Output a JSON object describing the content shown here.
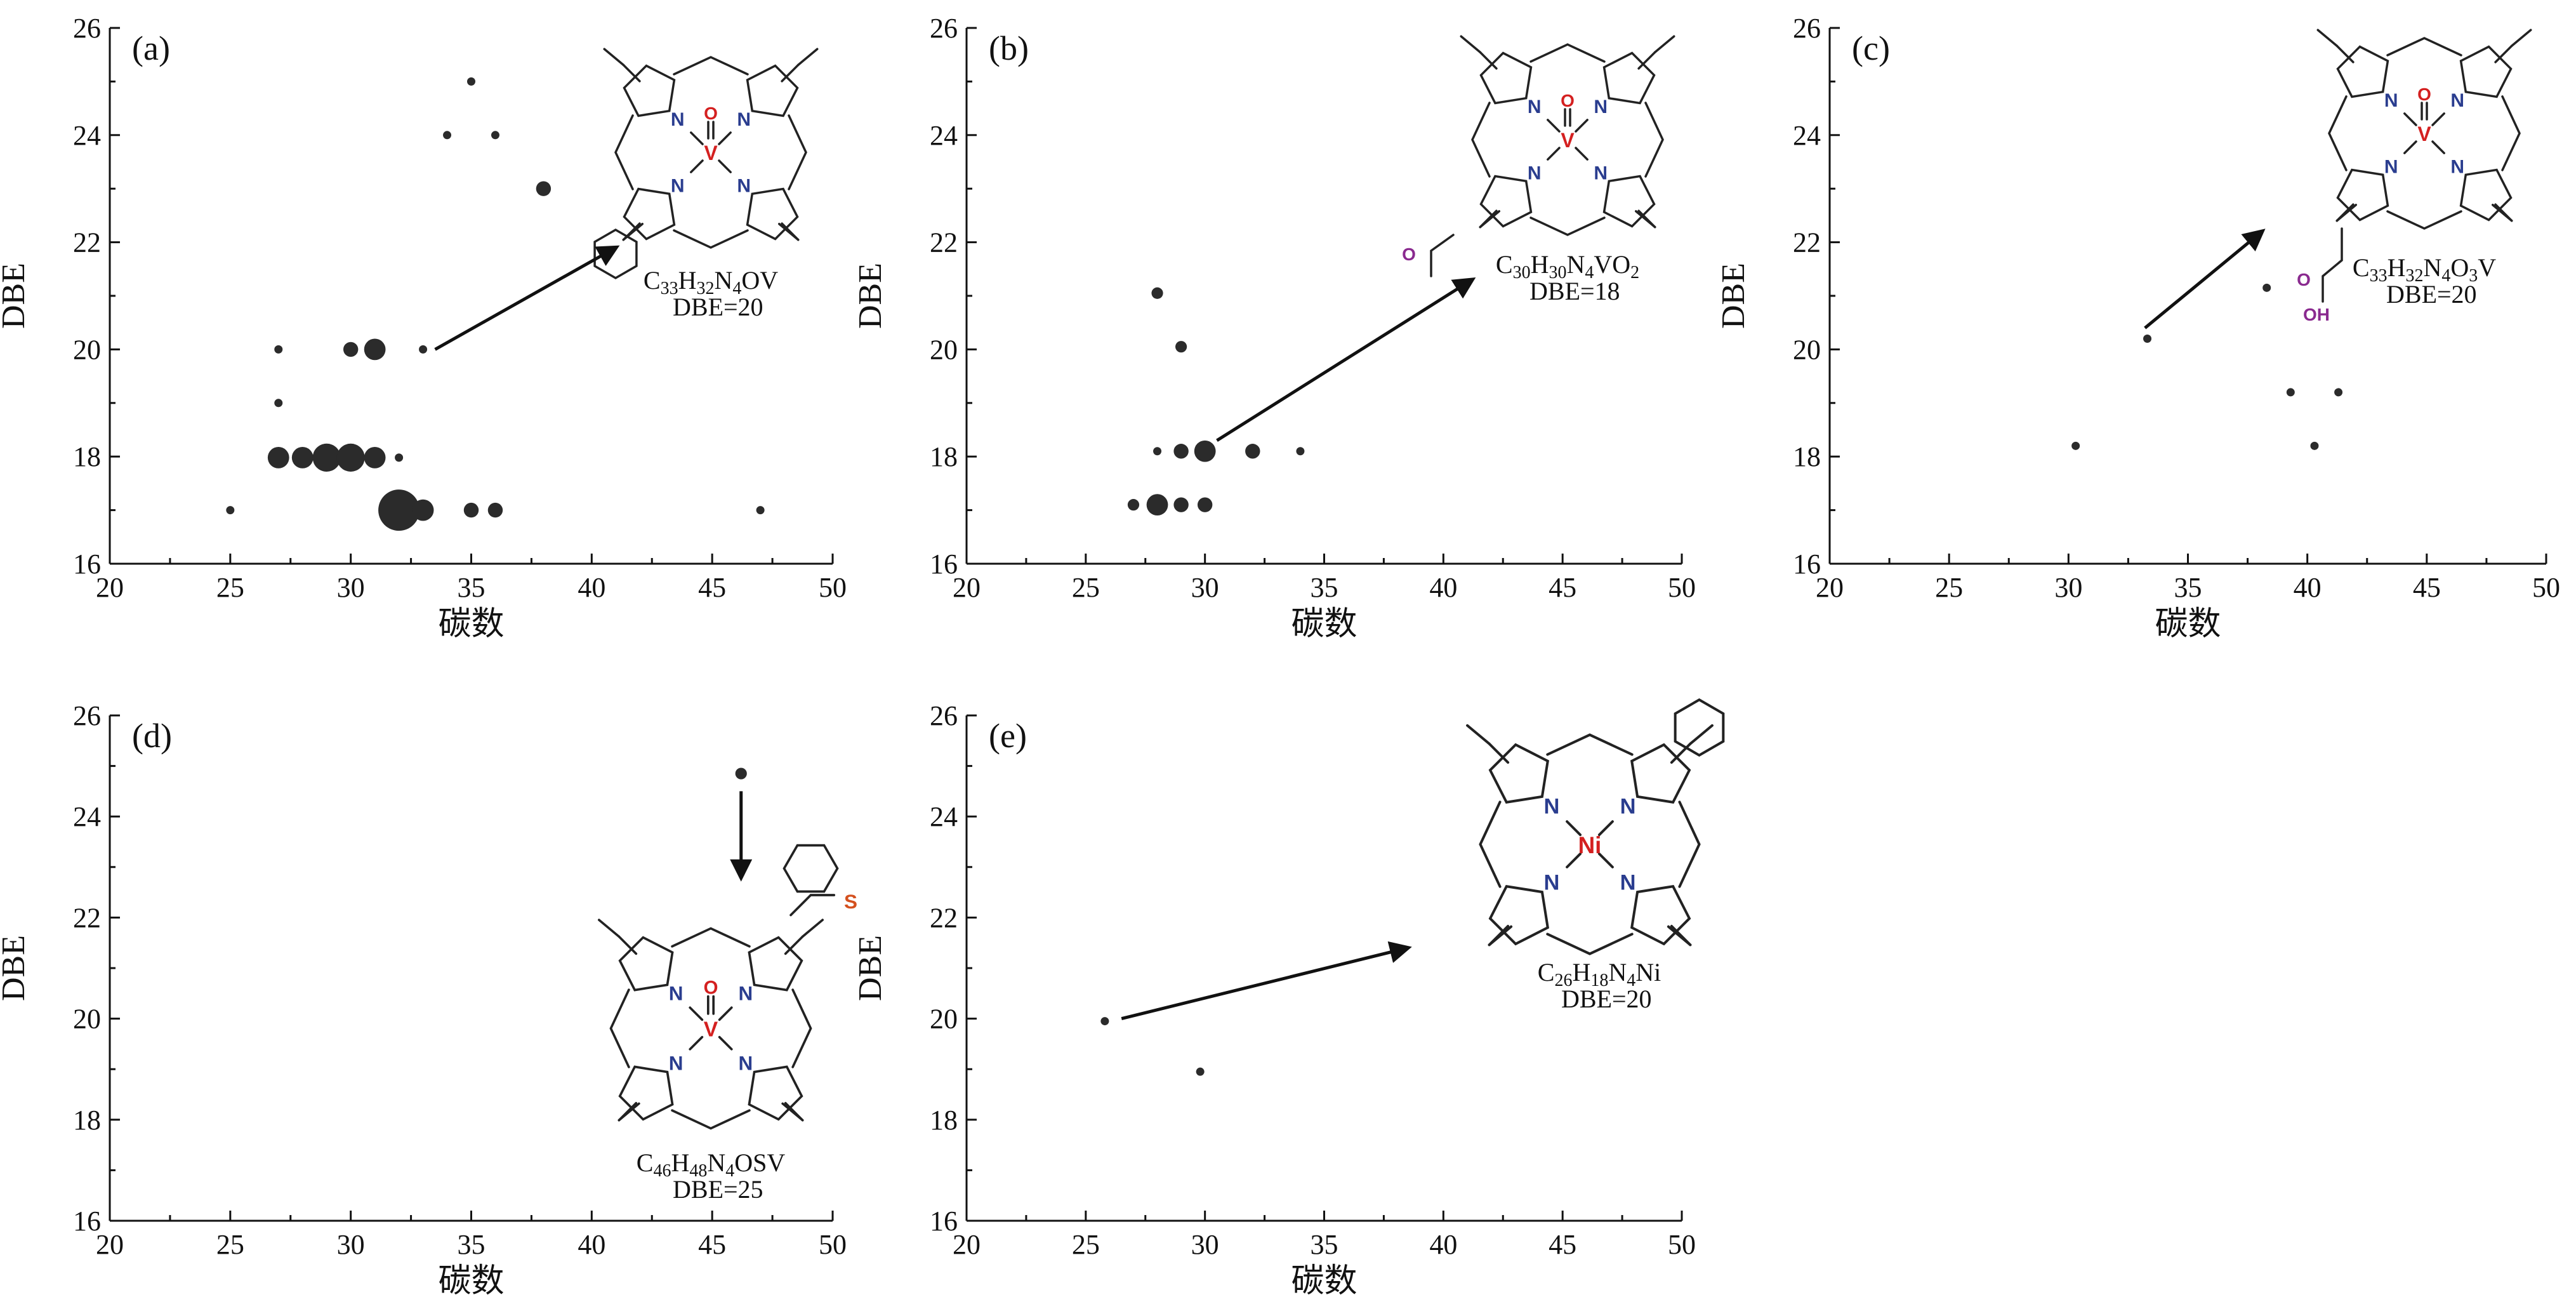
{
  "colors": {
    "axis": "#111111",
    "marker": "#2b2b2b",
    "nitrogen": "#2a3d8f",
    "metal": "#d42020",
    "oxygen_acid": "#8a2a8f",
    "sulfur": "#d4501e"
  },
  "atoms": {
    "n": "N",
    "v": "V",
    "ni": "Ni",
    "o": "O",
    "s": "S",
    "oh": "OH"
  },
  "chart_data": [
    {
      "type": "scatter",
      "panel": "(a)",
      "xlabel": "碳数",
      "ylabel": "DBE",
      "xlim": [
        20,
        50
      ],
      "ylim": [
        16,
        26
      ],
      "xticks": [
        20,
        25,
        30,
        35,
        40,
        45,
        50
      ],
      "yticks": [
        16,
        18,
        20,
        22,
        24,
        26
      ],
      "points": [
        {
          "x": 25,
          "y": 17,
          "size": 1
        },
        {
          "x": 27,
          "y": 17.98,
          "size": 3
        },
        {
          "x": 27,
          "y": 19,
          "size": 1
        },
        {
          "x": 27,
          "y": 20,
          "size": 1
        },
        {
          "x": 28,
          "y": 17.98,
          "size": 3
        },
        {
          "x": 29,
          "y": 17.98,
          "size": 4
        },
        {
          "x": 30,
          "y": 17.98,
          "size": 4
        },
        {
          "x": 30,
          "y": 20,
          "size": 2
        },
        {
          "x": 31,
          "y": 17.98,
          "size": 3
        },
        {
          "x": 31,
          "y": 20,
          "size": 3
        },
        {
          "x": 32,
          "y": 17.98,
          "size": 1
        },
        {
          "x": 32,
          "y": 17,
          "size": 6
        },
        {
          "x": 33,
          "y": 17,
          "size": 3
        },
        {
          "x": 33,
          "y": 20,
          "size": 1
        },
        {
          "x": 34,
          "y": 24,
          "size": 1
        },
        {
          "x": 35,
          "y": 25,
          "size": 1
        },
        {
          "x": 35,
          "y": 17,
          "size": 2
        },
        {
          "x": 36,
          "y": 24,
          "size": 1
        },
        {
          "x": 36,
          "y": 17,
          "size": 2
        },
        {
          "x": 38,
          "y": 23,
          "size": 2
        },
        {
          "x": 47,
          "y": 17,
          "size": 1
        }
      ],
      "annotation": {
        "formula": [
          {
            "t": "C"
          },
          {
            "t": "33",
            "sub": true
          },
          {
            "t": "H"
          },
          {
            "t": "32",
            "sub": true
          },
          {
            "t": "N"
          },
          {
            "t": "4",
            "sub": true
          },
          {
            "t": "OV"
          }
        ],
        "dbe": "DBE=20",
        "metal": "V",
        "arrow_from": [
          33.5,
          20
        ],
        "arrow_to": [
          41,
          21.9
        ]
      }
    },
    {
      "type": "scatter",
      "panel": "(b)",
      "xlabel": "碳数",
      "ylabel": "DBE",
      "xlim": [
        20,
        50
      ],
      "ylim": [
        16,
        26
      ],
      "xticks": [
        20,
        25,
        30,
        35,
        40,
        45,
        50
      ],
      "yticks": [
        16,
        18,
        20,
        22,
        24,
        26
      ],
      "points": [
        {
          "x": 27,
          "y": 17.1,
          "size": 1.5
        },
        {
          "x": 28,
          "y": 17.1,
          "size": 3
        },
        {
          "x": 29,
          "y": 17.1,
          "size": 2
        },
        {
          "x": 30,
          "y": 17.1,
          "size": 2
        },
        {
          "x": 28,
          "y": 18.1,
          "size": 1
        },
        {
          "x": 29,
          "y": 18.1,
          "size": 2
        },
        {
          "x": 30,
          "y": 18.1,
          "size": 3
        },
        {
          "x": 32,
          "y": 18.1,
          "size": 2
        },
        {
          "x": 34,
          "y": 18.1,
          "size": 1
        },
        {
          "x": 28,
          "y": 21.05,
          "size": 1.5
        },
        {
          "x": 29,
          "y": 20.05,
          "size": 1.5
        }
      ],
      "annotation": {
        "formula": [
          {
            "t": "C"
          },
          {
            "t": "30",
            "sub": true
          },
          {
            "t": "H"
          },
          {
            "t": "30",
            "sub": true
          },
          {
            "t": "N"
          },
          {
            "t": "4",
            "sub": true
          },
          {
            "t": "VO"
          },
          {
            "t": "2",
            "sub": true
          }
        ],
        "dbe": "DBE=18",
        "metal": "V",
        "arrow_from": [
          30.5,
          18.3
        ],
        "arrow_to": [
          41.2,
          21.3
        ]
      }
    },
    {
      "type": "scatter",
      "panel": "(c)",
      "xlabel": "碳数",
      "ylabel": "DBE",
      "xlim": [
        20,
        50
      ],
      "ylim": [
        16,
        26
      ],
      "xticks": [
        20,
        25,
        30,
        35,
        40,
        45,
        50
      ],
      "yticks": [
        16,
        18,
        20,
        22,
        24,
        26
      ],
      "points": [
        {
          "x": 30.3,
          "y": 18.2,
          "size": 1
        },
        {
          "x": 33.3,
          "y": 20.2,
          "size": 1
        },
        {
          "x": 38.3,
          "y": 21.15,
          "size": 1
        },
        {
          "x": 39.3,
          "y": 19.2,
          "size": 1
        },
        {
          "x": 40.3,
          "y": 18.2,
          "size": 1
        },
        {
          "x": 41.3,
          "y": 19.2,
          "size": 1
        }
      ],
      "annotation": {
        "formula": [
          {
            "t": "C"
          },
          {
            "t": "33",
            "sub": true
          },
          {
            "t": "H"
          },
          {
            "t": "32",
            "sub": true
          },
          {
            "t": "N"
          },
          {
            "t": "4",
            "sub": true
          },
          {
            "t": "O"
          },
          {
            "t": "3",
            "sub": true
          },
          {
            "t": "V"
          }
        ],
        "dbe": "DBE=20",
        "metal": "V",
        "arrow_from": [
          33.2,
          20.4
        ],
        "arrow_to": [
          38.1,
          22.2
        ]
      }
    },
    {
      "type": "scatter",
      "panel": "(d)",
      "xlabel": "碳数",
      "ylabel": "DBE",
      "xlim": [
        20,
        50
      ],
      "ylim": [
        16,
        26
      ],
      "xticks": [
        20,
        25,
        30,
        35,
        40,
        45,
        50
      ],
      "yticks": [
        16,
        18,
        20,
        22,
        24,
        26
      ],
      "points": [
        {
          "x": 46.2,
          "y": 24.85,
          "size": 1.5
        }
      ],
      "annotation": {
        "formula": [
          {
            "t": "C"
          },
          {
            "t": "46",
            "sub": true
          },
          {
            "t": "H"
          },
          {
            "t": "48",
            "sub": true
          },
          {
            "t": "N"
          },
          {
            "t": "4",
            "sub": true
          },
          {
            "t": "OSV"
          }
        ],
        "dbe": "DBE=25",
        "metal": "V",
        "arrow_from": [
          46.2,
          24.5
        ],
        "arrow_to": [
          46.2,
          22.8
        ]
      }
    },
    {
      "type": "scatter",
      "panel": "(e)",
      "xlabel": "碳数",
      "ylabel": "DBE",
      "xlim": [
        20,
        50
      ],
      "ylim": [
        16,
        26
      ],
      "xticks": [
        20,
        25,
        30,
        35,
        40,
        45,
        50
      ],
      "yticks": [
        16,
        18,
        20,
        22,
        24,
        26
      ],
      "points": [
        {
          "x": 25.8,
          "y": 19.95,
          "size": 1
        },
        {
          "x": 29.8,
          "y": 18.95,
          "size": 1
        }
      ],
      "annotation": {
        "formula": [
          {
            "t": "C"
          },
          {
            "t": "26",
            "sub": true
          },
          {
            "t": "H"
          },
          {
            "t": "18",
            "sub": true
          },
          {
            "t": "N"
          },
          {
            "t": "4",
            "sub": true
          },
          {
            "t": "Ni"
          }
        ],
        "dbe": "DBE=20",
        "metal": "Ni",
        "arrow_from": [
          26.5,
          20
        ],
        "arrow_to": [
          38.5,
          21.4
        ]
      }
    }
  ]
}
